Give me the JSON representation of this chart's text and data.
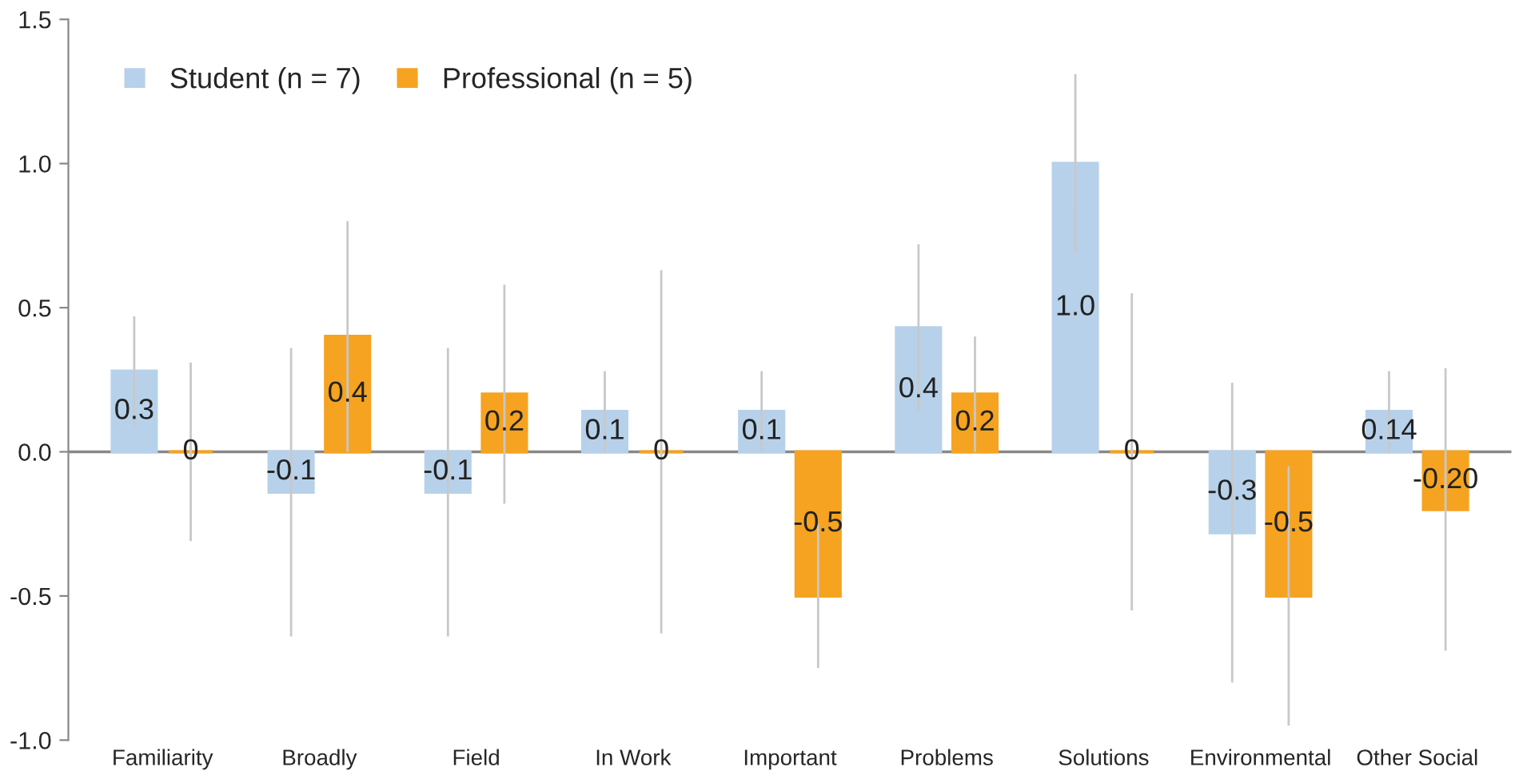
{
  "chart_data": {
    "type": "bar",
    "categories": [
      "Familiarity",
      "Broadly",
      "Field",
      "In Work",
      "Important",
      "Problems",
      "Solutions",
      "Environmental",
      "Other Social"
    ],
    "series": [
      {
        "name": "Student (n = 7)",
        "color": "#b7d1ea",
        "values": [
          0.28,
          -0.14,
          -0.14,
          0.14,
          0.14,
          0.43,
          1.0,
          -0.28,
          0.14
        ],
        "errors": [
          0.19,
          0.5,
          0.5,
          0.14,
          0.14,
          0.29,
          0.31,
          0.52,
          0.14
        ],
        "value_labels": [
          "0.3",
          "-0.1",
          "-0.1",
          "0.1",
          "0.1",
          "0.4",
          "1.0",
          "-0.3",
          "0.14"
        ]
      },
      {
        "name": "Professional (n = 5)",
        "color": "#f5a321",
        "values": [
          0,
          0.4,
          0.2,
          0,
          -0.5,
          0.2,
          0,
          -0.5,
          -0.2
        ],
        "errors": [
          0.31,
          0.4,
          0.38,
          0.63,
          0.25,
          0.2,
          0.55,
          0.45,
          0.49
        ],
        "value_labels": [
          "0",
          "0.4",
          "0.2",
          "0",
          "-0.5",
          "0.2",
          "0",
          "-0.5",
          "-0.20"
        ]
      }
    ],
    "ylim": [
      -1.0,
      1.5
    ],
    "yticks": [
      {
        "value": -1.0,
        "label": "-1.0"
      },
      -0.5,
      {
        "value": 0,
        "label": "0.0"
      },
      0.5,
      {
        "value": 1.0,
        "label": "1.0"
      },
      1.5
    ],
    "ref_lines": [
      {
        "axis": "y",
        "value": 0,
        "color": "#888888"
      }
    ],
    "legend": "top left",
    "grid": false
  }
}
